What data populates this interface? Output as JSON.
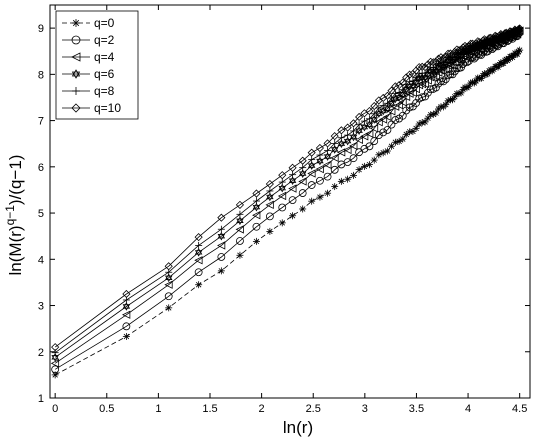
{
  "chart_data": {
    "type": "line",
    "xlabel": "ln(r)",
    "ylabel": "ln(M(r)^(q−1))/(q−1)",
    "ylabel_parts": {
      "prefix": "ln(M(r)",
      "superscript": "q−1",
      "suffix": ")/(q−1)"
    },
    "xlim": [
      -0.05,
      4.6
    ],
    "ylim": [
      1,
      9.5
    ],
    "xticks": [
      0,
      0.5,
      1,
      1.5,
      2,
      2.5,
      3,
      3.5,
      4,
      4.5
    ],
    "xtick_labels": [
      "0",
      "0.5",
      "1",
      "1.5",
      "2",
      "2.5",
      "3",
      "3.5",
      "4",
      "4.5"
    ],
    "yticks": [
      1,
      2,
      3,
      4,
      5,
      6,
      7,
      8,
      9
    ],
    "ytick_labels": [
      "1",
      "2",
      "3",
      "4",
      "5",
      "6",
      "7",
      "8",
      "9"
    ],
    "grid": false,
    "legend_position": "top-left",
    "series": [
      {
        "name": "q=0",
        "marker": "star",
        "line": "dashed",
        "anchors": [
          [
            0,
            1.5
          ],
          [
            0.69,
            2.33
          ],
          [
            1.1,
            2.95
          ],
          [
            1.39,
            3.45
          ],
          [
            1.61,
            3.75
          ],
          [
            2,
            4.48
          ],
          [
            2.5,
            5.25
          ],
          [
            3,
            6.0
          ],
          [
            3.5,
            6.85
          ],
          [
            4,
            7.75
          ],
          [
            4.5,
            8.5
          ]
        ]
      },
      {
        "name": "q=2",
        "marker": "circle",
        "line": "solid",
        "anchors": [
          [
            0,
            1.62
          ],
          [
            0.69,
            2.55
          ],
          [
            1.1,
            3.2
          ],
          [
            1.39,
            3.72
          ],
          [
            1.61,
            4.05
          ],
          [
            2,
            4.8
          ],
          [
            2.5,
            5.6
          ],
          [
            3,
            6.38
          ],
          [
            3.5,
            7.4
          ],
          [
            4,
            8.3
          ],
          [
            4.5,
            8.88
          ]
        ]
      },
      {
        "name": "q=4",
        "marker": "triangle-left",
        "line": "solid",
        "anchors": [
          [
            0,
            1.75
          ],
          [
            0.69,
            2.8
          ],
          [
            1.1,
            3.45
          ],
          [
            1.39,
            3.98
          ],
          [
            1.61,
            4.3
          ],
          [
            2,
            5.05
          ],
          [
            2.5,
            5.85
          ],
          [
            3,
            6.65
          ],
          [
            3.5,
            7.7
          ],
          [
            4,
            8.45
          ],
          [
            4.5,
            8.92
          ]
        ]
      },
      {
        "name": "q=6",
        "marker": "hexagram",
        "line": "solid",
        "anchors": [
          [
            0,
            1.88
          ],
          [
            0.69,
            2.98
          ],
          [
            1.1,
            3.6
          ],
          [
            1.39,
            4.15
          ],
          [
            1.61,
            4.5
          ],
          [
            2,
            5.22
          ],
          [
            2.5,
            6.02
          ],
          [
            3,
            6.85
          ],
          [
            3.5,
            7.85
          ],
          [
            4,
            8.52
          ],
          [
            4.5,
            8.95
          ]
        ]
      },
      {
        "name": "q=8",
        "marker": "plus",
        "line": "solid",
        "anchors": [
          [
            0,
            1.98
          ],
          [
            0.69,
            3.12
          ],
          [
            1.1,
            3.72
          ],
          [
            1.39,
            4.3
          ],
          [
            1.61,
            4.65
          ],
          [
            2,
            5.35
          ],
          [
            2.5,
            6.15
          ],
          [
            3,
            6.98
          ],
          [
            3.5,
            7.95
          ],
          [
            4,
            8.58
          ],
          [
            4.5,
            8.96
          ]
        ]
      },
      {
        "name": "q=10",
        "marker": "diamond",
        "line": "solid",
        "anchors": [
          [
            0,
            2.1
          ],
          [
            0.69,
            3.25
          ],
          [
            1.1,
            3.85
          ],
          [
            1.39,
            4.48
          ],
          [
            1.61,
            4.9
          ],
          [
            2,
            5.5
          ],
          [
            2.5,
            6.3
          ],
          [
            3,
            7.15
          ],
          [
            3.5,
            8.1
          ],
          [
            4,
            8.62
          ],
          [
            4.5,
            8.97
          ]
        ]
      }
    ]
  }
}
